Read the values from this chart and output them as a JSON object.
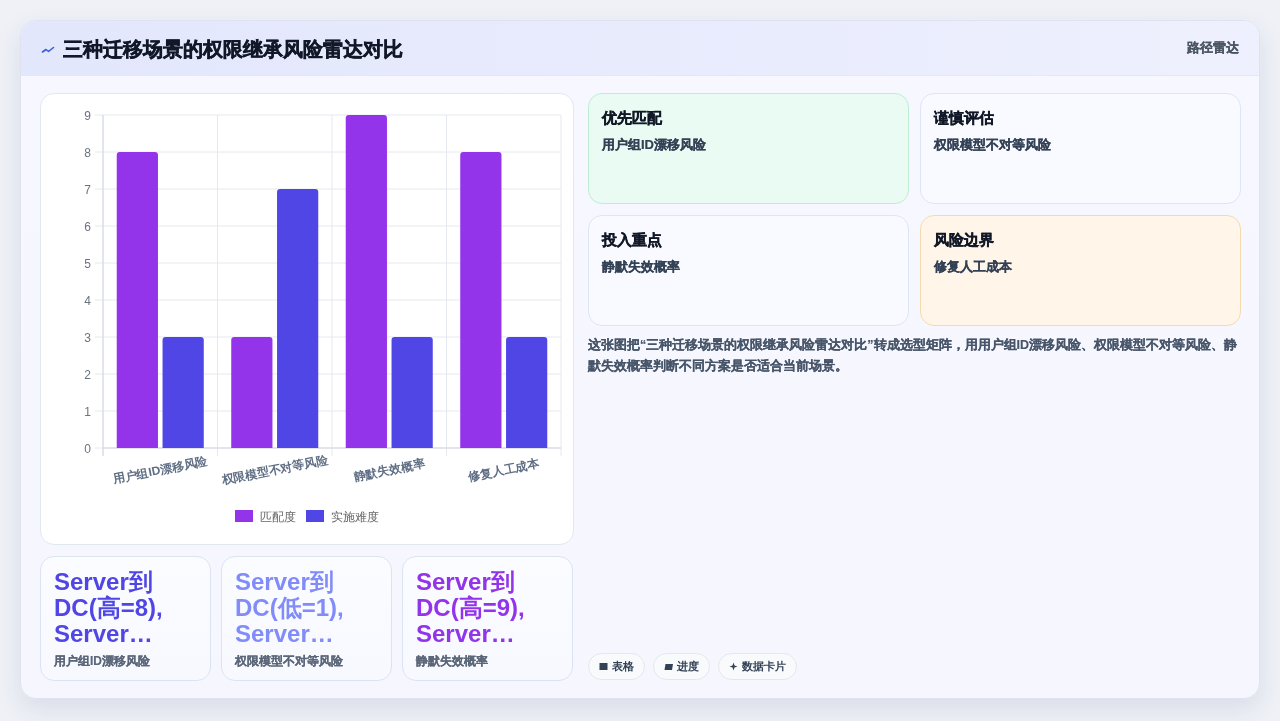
{
  "chart_data": {
    "type": "bar",
    "title": "三种迁移场景的权限继承风险雷达对比",
    "subtitle": "路径雷达",
    "categories": [
      "用户组ID漂移风险",
      "权限模型不对等风险",
      "静默失效概率",
      "修复人工成本"
    ],
    "series": [
      {
        "name": "匹配度",
        "color": "#9333ea",
        "values": [
          8,
          3,
          9,
          8
        ]
      },
      {
        "name": "实施难度",
        "color": "#4f46e5",
        "values": [
          3,
          7,
          3,
          3
        ]
      }
    ],
    "ylim": [
      0,
      9
    ],
    "yticks": [
      0,
      1,
      2,
      3,
      4,
      5,
      6,
      7,
      8,
      9
    ],
    "grid": true,
    "legend": "bottom",
    "annotations": [
      "优先匹配",
      "用户组ID漂移风险",
      "谨慎评估",
      "权限模型不对等风险",
      "投入重点",
      "静默失效概率",
      "风险边界",
      "修复人工成本",
      "这张图把“三种迁移场景的权限继承风险雷达对比”转成选型矩阵，用用户组ID漂移风险、权限模型不对等风险、静默失效概率判断不同方案是否适合当前场景。",
      "Server到DC(高=8), Server…",
      "用户组ID漂移风险",
      "Server到DC(低=1), Server…",
      "权限模型不对等风险",
      "Server到DC(高=9), Server…",
      "静默失效概率",
      "表格",
      "进度",
      "数据卡片"
    ]
  }
}
